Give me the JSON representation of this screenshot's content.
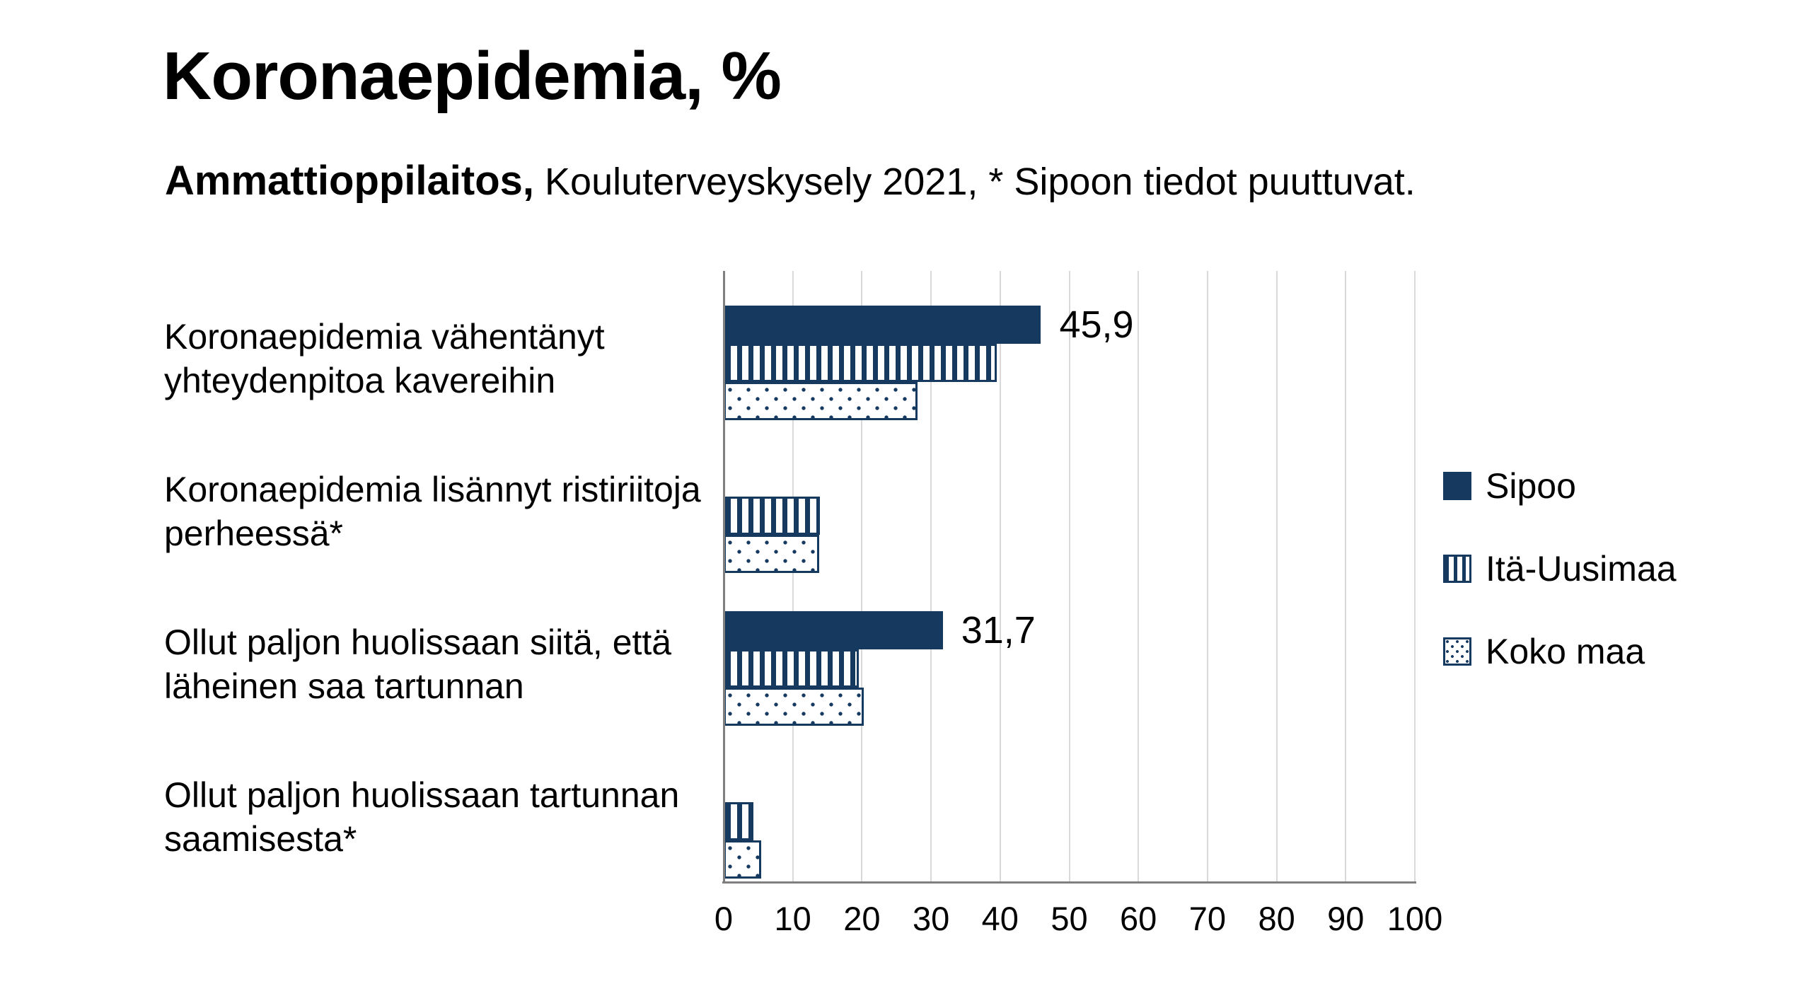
{
  "header": {
    "title": "Koronaepidemia, %",
    "subtitle_bold": "Ammattioppilaitos,",
    "subtitle_rest": " Kouluterveyskysely 2021, * Sipoon tiedot puuttuvat."
  },
  "chart_data": {
    "type": "bar",
    "orientation": "horizontal",
    "title": "Koronaepidemia, %",
    "subtitle": "Ammattioppilaitos, Kouluterveyskysely 2021, * Sipoon tiedot puuttuvat.",
    "categories": [
      "Koronaepidemia vähentänyt yhteydenpitoa kavereihin",
      "Koronaepidemia lisännyt ristiriitoja perheessä*",
      "Ollut paljon huolissaan siitä, että läheinen saa tartunnan",
      "Ollut paljon huolissaan tartunnan saamisesta*"
    ],
    "series": [
      {
        "name": "Sipoo",
        "pattern": "solid",
        "values": [
          45.9,
          null,
          31.7,
          null
        ],
        "data_labels": [
          "45,9",
          null,
          "31,7",
          null
        ],
        "note": "* Sipoon tiedot puuttuvat."
      },
      {
        "name": "Itä-Uusimaa",
        "pattern": "vertical-stripes",
        "values": [
          39.5,
          13.9,
          19.6,
          4.3
        ],
        "data_labels": [
          null,
          null,
          null,
          null
        ]
      },
      {
        "name": "Koko maa",
        "pattern": "dots",
        "values": [
          28.0,
          13.8,
          20.3,
          5.4
        ],
        "data_labels": [
          null,
          null,
          null,
          null
        ]
      }
    ],
    "xlim": [
      0,
      100
    ],
    "xticks": [
      0,
      10,
      20,
      30,
      40,
      50,
      60,
      70,
      80,
      90,
      100
    ],
    "grid": true,
    "legend_position": "right",
    "colors": {
      "bar_navy": "#163a5f",
      "gridline": "#d9d9d9",
      "axis_line": "#7f7f7f",
      "text": "#000000",
      "background": "#ffffff"
    }
  }
}
